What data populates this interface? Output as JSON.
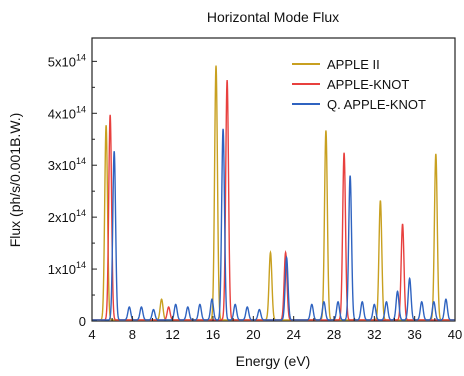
{
  "chart_data": {
    "type": "line",
    "title": "Horizontal Mode Flux",
    "xlabel": "Energy (eV)",
    "ylabel": "Flux (ph/s/0.001B.W.)",
    "xlim": [
      4,
      40
    ],
    "ylim": [
      0,
      545000000000000.0
    ],
    "x_ticks": [
      4,
      8,
      12,
      16,
      20,
      24,
      28,
      32,
      36,
      40
    ],
    "x_tick_labels": [
      "4",
      "8",
      "12",
      "16",
      "20",
      "24",
      "28",
      "32",
      "36",
      "40"
    ],
    "y_ticks": [
      {
        "mantissa": "0",
        "exp": "",
        "value": 0
      },
      {
        "mantissa": "1x10",
        "exp": "14",
        "value": 100000000000000.0
      },
      {
        "mantissa": "2x10",
        "exp": "14",
        "value": 200000000000000.0
      },
      {
        "mantissa": "3x10",
        "exp": "14",
        "value": 300000000000000.0
      },
      {
        "mantissa": "4x10",
        "exp": "14",
        "value": 400000000000000.0
      },
      {
        "mantissa": "5x10",
        "exp": "14",
        "value": 500000000000000.0
      }
    ],
    "grid": false,
    "legend_position": "top-right",
    "series": [
      {
        "name": "APPLE II",
        "color": "#c8a020",
        "peaks": [
          {
            "x": 5.4,
            "y": 375000000000000.0
          },
          {
            "x": 10.9,
            "y": 40000000000000.0
          },
          {
            "x": 16.3,
            "y": 490000000000000.0
          },
          {
            "x": 21.7,
            "y": 130000000000000.0
          },
          {
            "x": 27.2,
            "y": 365000000000000.0
          },
          {
            "x": 32.6,
            "y": 230000000000000.0
          },
          {
            "x": 38.1,
            "y": 320000000000000.0
          }
        ]
      },
      {
        "name": "APPLE-KNOT",
        "color": "#e8403e",
        "peaks": [
          {
            "x": 5.8,
            "y": 395000000000000.0
          },
          {
            "x": 11.6,
            "y": 25000000000000.0
          },
          {
            "x": 17.4,
            "y": 462000000000000.0
          },
          {
            "x": 23.2,
            "y": 130000000000000.0
          },
          {
            "x": 29.0,
            "y": 322000000000000.0
          },
          {
            "x": 34.8,
            "y": 185000000000000.0
          }
        ]
      },
      {
        "name": "Q. APPLE-KNOT",
        "color": "#2f63c0",
        "peaks": [
          {
            "x": 6.2,
            "y": 325000000000000.0
          },
          {
            "x": 7.7,
            "y": 25000000000000.0
          },
          {
            "x": 8.9,
            "y": 25000000000000.0
          },
          {
            "x": 10.1,
            "y": 20000000000000.0
          },
          {
            "x": 12.3,
            "y": 30000000000000.0
          },
          {
            "x": 13.5,
            "y": 25000000000000.0
          },
          {
            "x": 14.7,
            "y": 30000000000000.0
          },
          {
            "x": 15.9,
            "y": 40000000000000.0
          },
          {
            "x": 17.0,
            "y": 368000000000000.0
          },
          {
            "x": 18.2,
            "y": 30000000000000.0
          },
          {
            "x": 19.4,
            "y": 25000000000000.0
          },
          {
            "x": 20.6,
            "y": 20000000000000.0
          },
          {
            "x": 23.3,
            "y": 120000000000000.0
          },
          {
            "x": 25.8,
            "y": 30000000000000.0
          },
          {
            "x": 27.0,
            "y": 35000000000000.0
          },
          {
            "x": 28.4,
            "y": 35000000000000.0
          },
          {
            "x": 29.6,
            "y": 278000000000000.0
          },
          {
            "x": 30.8,
            "y": 35000000000000.0
          },
          {
            "x": 32.0,
            "y": 30000000000000.0
          },
          {
            "x": 33.2,
            "y": 35000000000000.0
          },
          {
            "x": 34.3,
            "y": 55000000000000.0
          },
          {
            "x": 35.5,
            "y": 80000000000000.0
          },
          {
            "x": 36.7,
            "y": 35000000000000.0
          },
          {
            "x": 37.9,
            "y": 35000000000000.0
          },
          {
            "x": 39.1,
            "y": 40000000000000.0
          }
        ]
      }
    ]
  }
}
